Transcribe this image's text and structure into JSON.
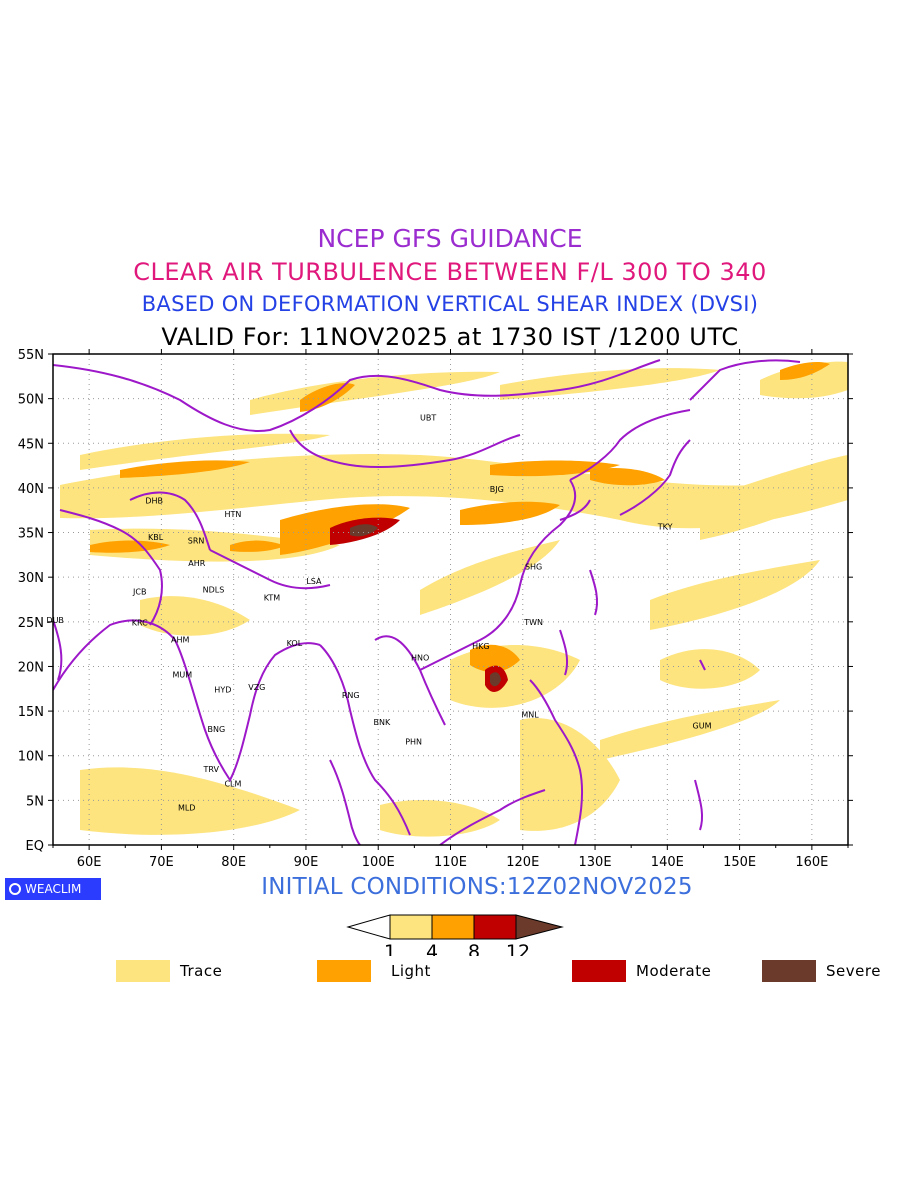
{
  "titles": {
    "line1": "NCEP GFS GUIDANCE",
    "line2": "CLEAR AIR TURBULENCE BETWEEN F/L 300 TO 340",
    "line3": "BASED ON DEFORMATION VERTICAL SHEAR INDEX (DVSI)",
    "line4": "VALID For: 11NOV2025 at 1730 IST /1200 UTC"
  },
  "map": {
    "lon_range": [
      55,
      165
    ],
    "lat_range": [
      0,
      55
    ],
    "lat_labels": [
      "55N",
      "50N",
      "45N",
      "40N",
      "35N",
      "30N",
      "25N",
      "20N",
      "15N",
      "10N",
      "5N",
      "EQ"
    ],
    "lon_labels": [
      "60E",
      "70E",
      "80E",
      "90E",
      "100E",
      "110E",
      "120E",
      "130E",
      "140E",
      "150E",
      "160E"
    ],
    "cities": [
      {
        "code": "UBT",
        "lon": 106.9,
        "lat": 47.9
      },
      {
        "code": "BJG",
        "lon": 116.4,
        "lat": 39.9
      },
      {
        "code": "DHB",
        "lon": 69.0,
        "lat": 38.6
      },
      {
        "code": "HTN",
        "lon": 79.9,
        "lat": 37.1
      },
      {
        "code": "TKY",
        "lon": 139.7,
        "lat": 35.7
      },
      {
        "code": "KBL",
        "lon": 69.2,
        "lat": 34.5
      },
      {
        "code": "SRN",
        "lon": 74.8,
        "lat": 34.1
      },
      {
        "code": "AHR",
        "lon": 74.9,
        "lat": 31.6
      },
      {
        "code": "SHG",
        "lon": 121.5,
        "lat": 31.2
      },
      {
        "code": "LSA",
        "lon": 91.1,
        "lat": 29.6
      },
      {
        "code": "JCB",
        "lon": 67.0,
        "lat": 28.4
      },
      {
        "code": "NDLS",
        "lon": 77.2,
        "lat": 28.6
      },
      {
        "code": "KTM",
        "lon": 85.3,
        "lat": 27.7
      },
      {
        "code": "DUB",
        "lon": 55.3,
        "lat": 25.2
      },
      {
        "code": "KRC",
        "lon": 67.0,
        "lat": 24.9
      },
      {
        "code": "TWN",
        "lon": 121.5,
        "lat": 25.0
      },
      {
        "code": "AHM",
        "lon": 72.6,
        "lat": 23.0
      },
      {
        "code": "KOL",
        "lon": 88.4,
        "lat": 22.6
      },
      {
        "code": "HKG",
        "lon": 114.2,
        "lat": 22.3
      },
      {
        "code": "HNO",
        "lon": 105.8,
        "lat": 21.0
      },
      {
        "code": "MUM",
        "lon": 72.9,
        "lat": 19.1
      },
      {
        "code": "HYD",
        "lon": 78.5,
        "lat": 17.4
      },
      {
        "code": "VZG",
        "lon": 83.2,
        "lat": 17.7
      },
      {
        "code": "RNG",
        "lon": 96.2,
        "lat": 16.8
      },
      {
        "code": "MNL",
        "lon": 121.0,
        "lat": 14.6
      },
      {
        "code": "BNK",
        "lon": 100.5,
        "lat": 13.8
      },
      {
        "code": "GUM",
        "lon": 144.8,
        "lat": 13.4
      },
      {
        "code": "BNG",
        "lon": 77.6,
        "lat": 13.0
      },
      {
        "code": "PHN",
        "lon": 104.9,
        "lat": 11.6
      },
      {
        "code": "TRV",
        "lon": 76.9,
        "lat": 8.5
      },
      {
        "code": "CLM",
        "lon": 79.9,
        "lat": 6.9
      },
      {
        "code": "MLD",
        "lon": 73.5,
        "lat": 4.2
      }
    ]
  },
  "initial_conditions": "INITIAL CONDITIONS:12Z02NOV2025",
  "logo_text": "WEACLIM",
  "colorbar": {
    "ticks": [
      "1",
      "4",
      "8",
      "12"
    ],
    "colors": [
      "#ffffff",
      "#fde47f",
      "#ffa100",
      "#c00000",
      "#6b3a2a"
    ]
  },
  "legend": [
    {
      "label": "Trace",
      "color": "#fde47f"
    },
    {
      "label": "Light",
      "color": "#ffa100"
    },
    {
      "label": "Moderate",
      "color": "#c00000"
    },
    {
      "label": "Severe",
      "color": "#6b3a2a"
    }
  ]
}
